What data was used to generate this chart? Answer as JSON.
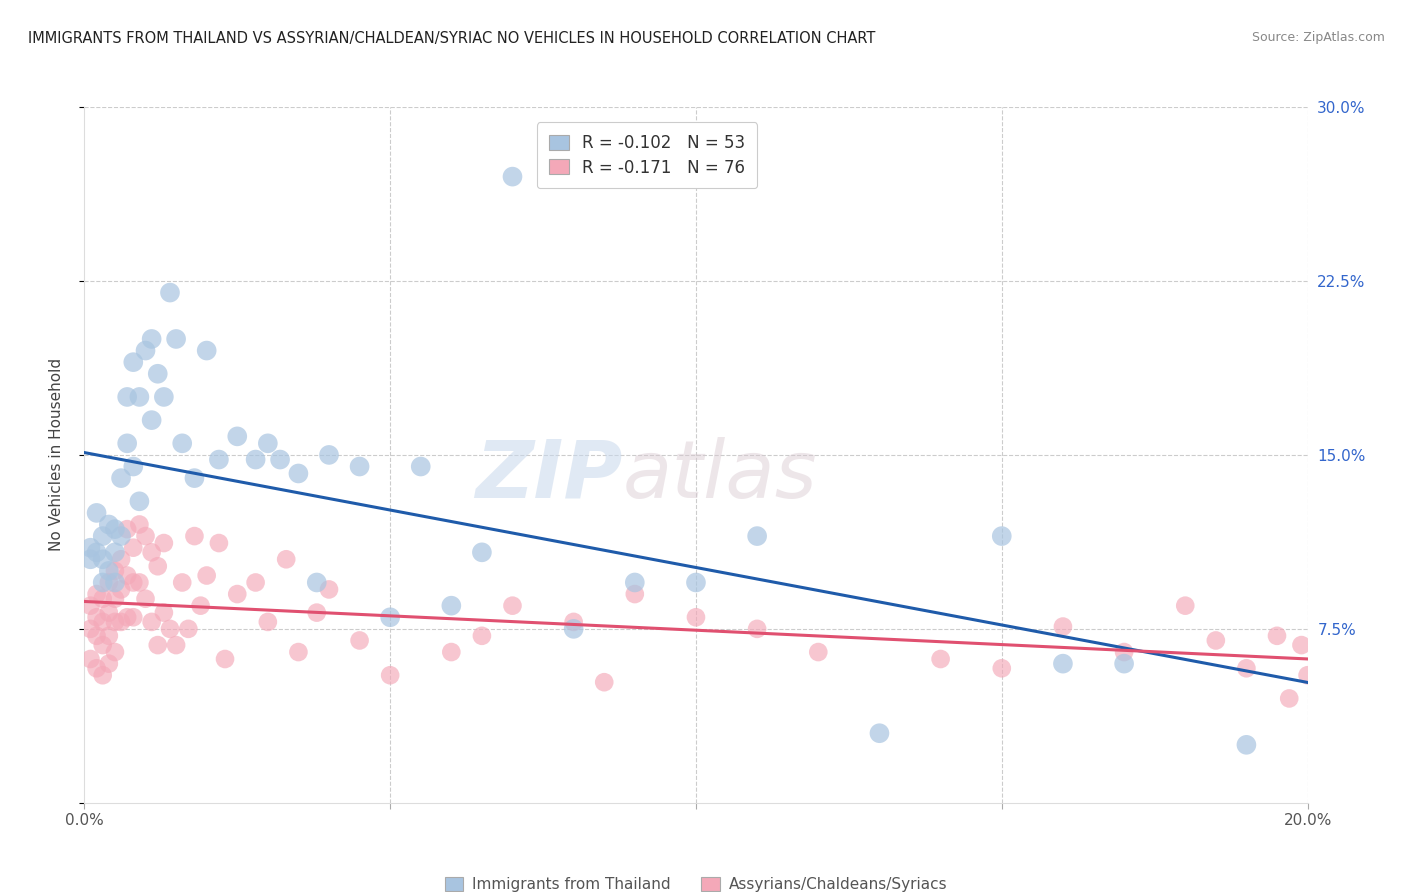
{
  "title": "IMMIGRANTS FROM THAILAND VS ASSYRIAN/CHALDEAN/SYRIAC NO VEHICLES IN HOUSEHOLD CORRELATION CHART",
  "source": "Source: ZipAtlas.com",
  "ylabel": "No Vehicles in Household",
  "legend_label_blue": "Immigrants from Thailand",
  "legend_label_pink": "Assyrians/Chaldeans/Syriacs",
  "legend_r_blue": "R = -0.102",
  "legend_n_blue": "N = 53",
  "legend_r_pink": "R = -0.171",
  "legend_n_pink": "N = 76",
  "x_min": 0.0,
  "x_max": 0.2,
  "y_min": 0.0,
  "y_max": 0.3,
  "blue_color": "#A8C4E0",
  "pink_color": "#F4A8B8",
  "blue_line_color": "#1F5BAA",
  "pink_line_color": "#E05070",
  "watermark_zip": "ZIP",
  "watermark_atlas": "atlas",
  "background_color": "#FFFFFF",
  "grid_color": "#CCCCCC",
  "blue_x": [
    0.001,
    0.001,
    0.002,
    0.002,
    0.003,
    0.003,
    0.003,
    0.004,
    0.004,
    0.005,
    0.005,
    0.005,
    0.006,
    0.006,
    0.007,
    0.007,
    0.008,
    0.008,
    0.009,
    0.009,
    0.01,
    0.011,
    0.011,
    0.012,
    0.013,
    0.014,
    0.015,
    0.016,
    0.018,
    0.02,
    0.022,
    0.025,
    0.028,
    0.03,
    0.032,
    0.035,
    0.038,
    0.04,
    0.045,
    0.05,
    0.055,
    0.06,
    0.065,
    0.07,
    0.08,
    0.09,
    0.1,
    0.11,
    0.13,
    0.15,
    0.16,
    0.17,
    0.19
  ],
  "blue_y": [
    0.11,
    0.105,
    0.125,
    0.108,
    0.115,
    0.105,
    0.095,
    0.12,
    0.1,
    0.118,
    0.108,
    0.095,
    0.14,
    0.115,
    0.175,
    0.155,
    0.19,
    0.145,
    0.175,
    0.13,
    0.195,
    0.2,
    0.165,
    0.185,
    0.175,
    0.22,
    0.2,
    0.155,
    0.14,
    0.195,
    0.148,
    0.158,
    0.148,
    0.155,
    0.148,
    0.142,
    0.095,
    0.15,
    0.145,
    0.08,
    0.145,
    0.085,
    0.108,
    0.27,
    0.075,
    0.095,
    0.095,
    0.115,
    0.03,
    0.115,
    0.06,
    0.06,
    0.025
  ],
  "pink_x": [
    0.001,
    0.001,
    0.001,
    0.002,
    0.002,
    0.002,
    0.002,
    0.003,
    0.003,
    0.003,
    0.003,
    0.004,
    0.004,
    0.004,
    0.004,
    0.005,
    0.005,
    0.005,
    0.005,
    0.006,
    0.006,
    0.006,
    0.007,
    0.007,
    0.007,
    0.008,
    0.008,
    0.008,
    0.009,
    0.009,
    0.01,
    0.01,
    0.011,
    0.011,
    0.012,
    0.012,
    0.013,
    0.013,
    0.014,
    0.015,
    0.016,
    0.017,
    0.018,
    0.019,
    0.02,
    0.022,
    0.023,
    0.025,
    0.028,
    0.03,
    0.033,
    0.035,
    0.038,
    0.04,
    0.045,
    0.05,
    0.06,
    0.065,
    0.07,
    0.08,
    0.085,
    0.09,
    0.1,
    0.11,
    0.12,
    0.14,
    0.15,
    0.16,
    0.17,
    0.18,
    0.185,
    0.19,
    0.195,
    0.197,
    0.199,
    0.2
  ],
  "pink_y": [
    0.085,
    0.075,
    0.062,
    0.09,
    0.08,
    0.072,
    0.058,
    0.088,
    0.078,
    0.068,
    0.055,
    0.095,
    0.082,
    0.072,
    0.06,
    0.1,
    0.088,
    0.078,
    0.065,
    0.105,
    0.092,
    0.078,
    0.118,
    0.098,
    0.08,
    0.11,
    0.095,
    0.08,
    0.12,
    0.095,
    0.115,
    0.088,
    0.108,
    0.078,
    0.102,
    0.068,
    0.112,
    0.082,
    0.075,
    0.068,
    0.095,
    0.075,
    0.115,
    0.085,
    0.098,
    0.112,
    0.062,
    0.09,
    0.095,
    0.078,
    0.105,
    0.065,
    0.082,
    0.092,
    0.07,
    0.055,
    0.065,
    0.072,
    0.085,
    0.078,
    0.052,
    0.09,
    0.08,
    0.075,
    0.065,
    0.062,
    0.058,
    0.076,
    0.065,
    0.085,
    0.07,
    0.058,
    0.072,
    0.045,
    0.068,
    0.055
  ]
}
